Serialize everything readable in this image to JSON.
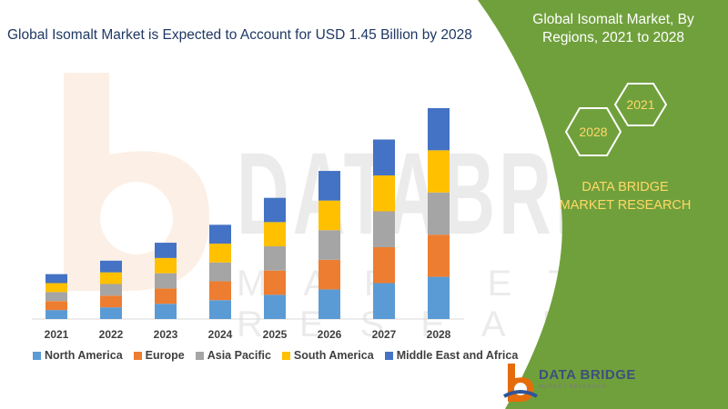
{
  "chart_data": {
    "type": "bar",
    "stacked": true,
    "title": "Global Isomalt Market is Expected to Account for USD 1.45 Billion by 2028",
    "categories": [
      "2021",
      "2022",
      "2023",
      "2024",
      "2025",
      "2026",
      "2027",
      "2028"
    ],
    "series": [
      {
        "name": "North America",
        "color": "#5b9bd5",
        "values": [
          10,
          13,
          17,
          21,
          27,
          33,
          40,
          47
        ]
      },
      {
        "name": "Europe",
        "color": "#ed7d31",
        "values": [
          10,
          13,
          17,
          21,
          27,
          33,
          40,
          47
        ]
      },
      {
        "name": "Asia Pacific",
        "color": "#a5a5a5",
        "values": [
          10,
          13,
          17,
          21,
          27,
          33,
          40,
          47
        ]
      },
      {
        "name": "South America",
        "color": "#ffc000",
        "values": [
          10,
          13,
          17,
          21,
          27,
          33,
          40,
          47
        ]
      },
      {
        "name": "Middle East and Africa",
        "color": "#4472c4",
        "values": [
          10,
          13,
          17,
          21,
          27,
          33,
          40,
          47
        ]
      }
    ],
    "ylim": [
      0,
      240
    ],
    "grid": false,
    "legend": "bottom"
  },
  "panel": {
    "title": "Global Isomalt Market, By Regions, 2021 to 2028",
    "hex_start": "2028",
    "hex_end": "2021",
    "company": "DATA BRIDGE MARKET RESEARCH",
    "green": "#70a03c",
    "accent": "#ffd966"
  },
  "watermark": {
    "text": "DATABRIDGE",
    "sub": "MARKET RESEARCH"
  },
  "footer": {
    "brand": "DATA BRIDGE",
    "tagline": "MARKET RESEARCH"
  }
}
